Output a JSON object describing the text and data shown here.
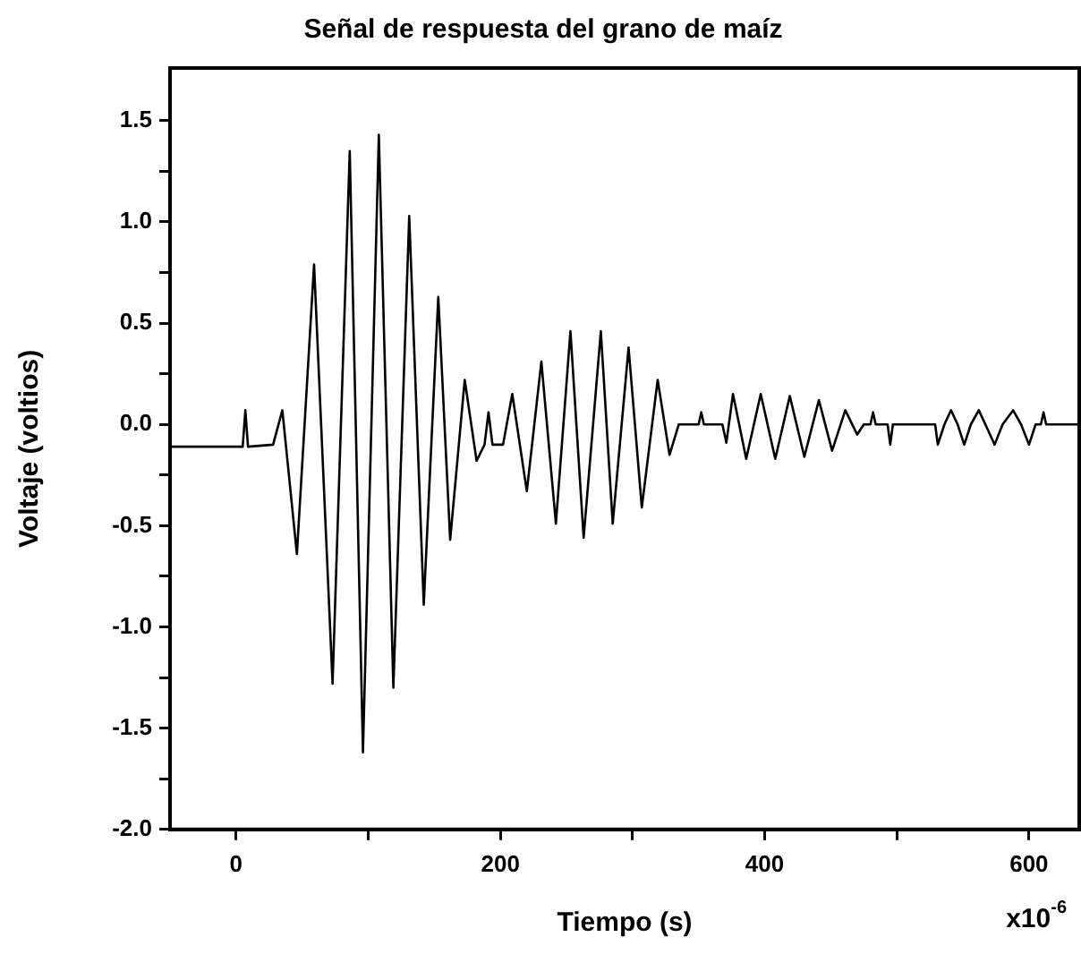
{
  "chart_data": {
    "type": "line",
    "title": "Señal de respuesta del grano de maíz",
    "xlabel": "Tiempo (s)",
    "ylabel": "Voltaje (voltios)",
    "annotations": [
      "x10$^{-6}$"
    ],
    "x": [
      -50,
      5,
      7,
      9,
      28,
      35,
      46,
      59,
      73,
      86,
      96,
      108,
      119,
      131,
      142,
      153,
      162,
      173,
      182,
      188,
      191,
      194,
      202,
      209,
      220,
      231,
      242,
      253,
      263,
      276,
      285,
      297,
      307,
      319,
      328,
      335,
      350,
      352,
      354,
      368,
      371,
      376,
      386,
      397,
      408,
      419,
      430,
      441,
      451,
      461,
      470,
      475,
      480,
      482,
      484,
      493,
      495,
      497,
      529,
      531,
      536,
      541,
      546,
      551,
      556,
      562,
      567,
      574,
      580,
      588,
      594,
      600,
      605,
      609,
      611,
      613,
      638
    ],
    "series": [
      {
        "color": "#000000",
        "values": [
          -0.11,
          -0.11,
          0.07,
          -0.11,
          -0.1,
          0.07,
          -0.64,
          0.79,
          -1.28,
          1.35,
          -1.62,
          1.43,
          -1.3,
          1.03,
          -0.89,
          0.63,
          -0.57,
          0.22,
          -0.18,
          -0.1,
          0.06,
          -0.1,
          -0.1,
          0.15,
          -0.33,
          0.31,
          -0.49,
          0.46,
          -0.56,
          0.46,
          -0.49,
          0.38,
          -0.41,
          0.22,
          -0.15,
          0,
          0,
          0.06,
          0,
          0,
          -0.09,
          0.15,
          -0.17,
          0.15,
          -0.17,
          0.14,
          -0.16,
          0.12,
          -0.13,
          0.07,
          -0.05,
          0,
          0,
          0.06,
          0,
          0,
          -0.1,
          0,
          0,
          -0.1,
          0,
          0.07,
          0,
          -0.1,
          0,
          0.07,
          0,
          -0.1,
          0,
          0.07,
          0,
          -0.1,
          0,
          0,
          0.06,
          0,
          0
        ]
      }
    ],
    "xlim": [
      -50,
      638
    ],
    "xticks": [
      0,
      {
        "value": 100,
        "label": null
      },
      200,
      {
        "value": 300,
        "label": null
      },
      400,
      {
        "value": 500,
        "label": null
      },
      600
    ],
    "ylim": [
      -2.0,
      1.76
    ],
    "yticks": [
      {
        "value": -2,
        "label": "-2.0"
      },
      {
        "value": -1.75,
        "label": null
      },
      {
        "value": -1.5,
        "label": "-1.5"
      },
      {
        "value": -1.25,
        "label": null
      },
      {
        "value": -1,
        "label": "-1.0"
      },
      {
        "value": -0.75,
        "label": null
      },
      {
        "value": -0.5,
        "label": "-0.5"
      },
      {
        "value": -0.25,
        "label": null
      },
      {
        "value": 0,
        "label": "0.0"
      },
      {
        "value": 0.25,
        "label": null
      },
      {
        "value": 0.5,
        "label": "0.5"
      },
      {
        "value": 0.75,
        "label": null
      },
      {
        "value": 1,
        "label": "1.0"
      },
      {
        "value": 1.25,
        "label": null
      },
      {
        "value": 1.5,
        "label": "1.5"
      }
    ],
    "grid": false,
    "legend": false,
    "marker": "none",
    "line_style": "solid"
  }
}
